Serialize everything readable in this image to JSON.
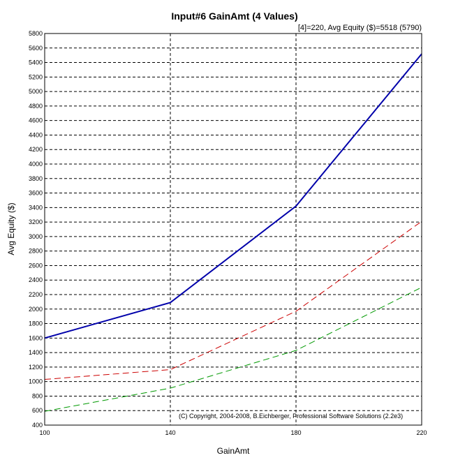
{
  "chart_data": {
    "type": "line",
    "title": "Input#6 GainAmt (4 Values)",
    "subtitle": "[4]=220,   Avg Equity ($)=5518 (5790)",
    "xlabel": "GainAmt",
    "ylabel": "Avg Equity ($)",
    "x": [
      100,
      140,
      180,
      220
    ],
    "xlim": [
      100,
      220
    ],
    "ylim": [
      400,
      5800
    ],
    "y_ticks": [
      400,
      600,
      800,
      1000,
      1200,
      1400,
      1600,
      1800,
      2000,
      2200,
      2400,
      2600,
      2800,
      3000,
      3200,
      3400,
      3600,
      3800,
      4000,
      4200,
      4400,
      4600,
      4800,
      5000,
      5200,
      5400,
      5600,
      5800
    ],
    "grid": true,
    "series": [
      {
        "values": [
          1600,
          2090,
          3420,
          5518
        ],
        "color": "#0000aa",
        "style": "solid"
      },
      {
        "values": [
          1030,
          1165,
          1970,
          3210
        ],
        "color": "#cc0000",
        "style": "dashed"
      },
      {
        "values": [
          590,
          910,
          1430,
          2300
        ],
        "color": "#009900",
        "style": "dashed"
      }
    ],
    "annotation": "(C) Copyright, 2004-2008, B.Eichberger, Professional Software Solutions (2.2e3)"
  }
}
